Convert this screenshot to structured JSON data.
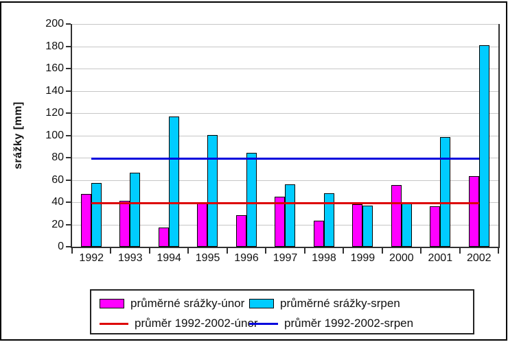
{
  "window": {
    "background": "#FFFFFF",
    "frame_color": "#000000"
  },
  "chart_data": {
    "type": "bar",
    "title": "",
    "xlabel": "",
    "ylabel": "srážky [mm]",
    "categories": [
      "1992",
      "1993",
      "1994",
      "1995",
      "1996",
      "1997",
      "1998",
      "1999",
      "2000",
      "2001",
      "2002"
    ],
    "series": [
      {
        "name": "průměrné srážky-únor",
        "color": "#FF00FF",
        "values": [
          46,
          40,
          16,
          39,
          27,
          44,
          22,
          37,
          54,
          35,
          62
        ]
      },
      {
        "name": "průměrné srážky-srpen",
        "color": "#00CCFF",
        "values": [
          56,
          65,
          116,
          99,
          83,
          55,
          47,
          36,
          38,
          97,
          180
        ]
      }
    ],
    "avg_lines": [
      {
        "name": "průměr 1992-2002-únor",
        "color": "#DD0000",
        "value": 39
      },
      {
        "name": "průměr 1992-2002-srpen",
        "color": "#0000DD",
        "value": 79
      }
    ],
    "ylim": [
      0,
      200
    ],
    "ytick_step": 20,
    "grid": true,
    "legend_position": "bottom",
    "colors": {
      "grid": "#C6C6C6",
      "axis": "#303030",
      "text": "#111111"
    }
  }
}
